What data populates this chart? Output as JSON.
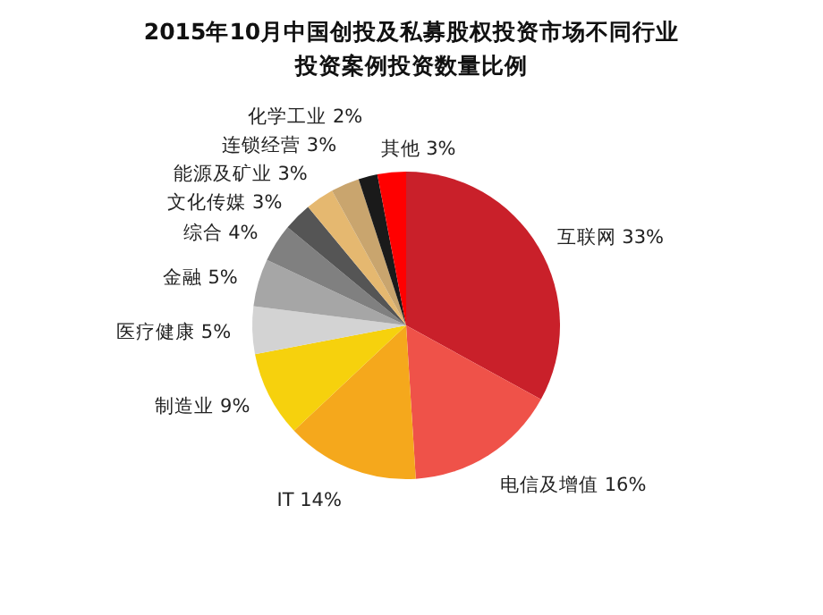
{
  "chart_data": {
    "type": "pie",
    "title": "2015年10月中国创投及私募股权投资市场不同行业投资案例投资数量比例",
    "categories": [
      "互联网",
      "电信及增值",
      "IT",
      "制造业",
      "医疗健康",
      "金融",
      "综合",
      "文化传媒",
      "能源及矿业",
      "连锁经营",
      "化学工业",
      "其他"
    ],
    "values": [
      33,
      16,
      14,
      9,
      5,
      5,
      4,
      3,
      3,
      3,
      2,
      3
    ],
    "value_labels": [
      "33%",
      "16%",
      "14%",
      "9%",
      "5%",
      "5%",
      "4%",
      "3%",
      "3%",
      "3%",
      "2%",
      "3%"
    ],
    "colors": [
      "#c9202a",
      "#ef5249",
      "#f5a81c",
      "#f6d10d",
      "#d3d3d3",
      "#a6a6a6",
      "#808080",
      "#555555",
      "#e5b870",
      "#c9a56e",
      "#1a1a1a",
      "#ff0000"
    ]
  }
}
